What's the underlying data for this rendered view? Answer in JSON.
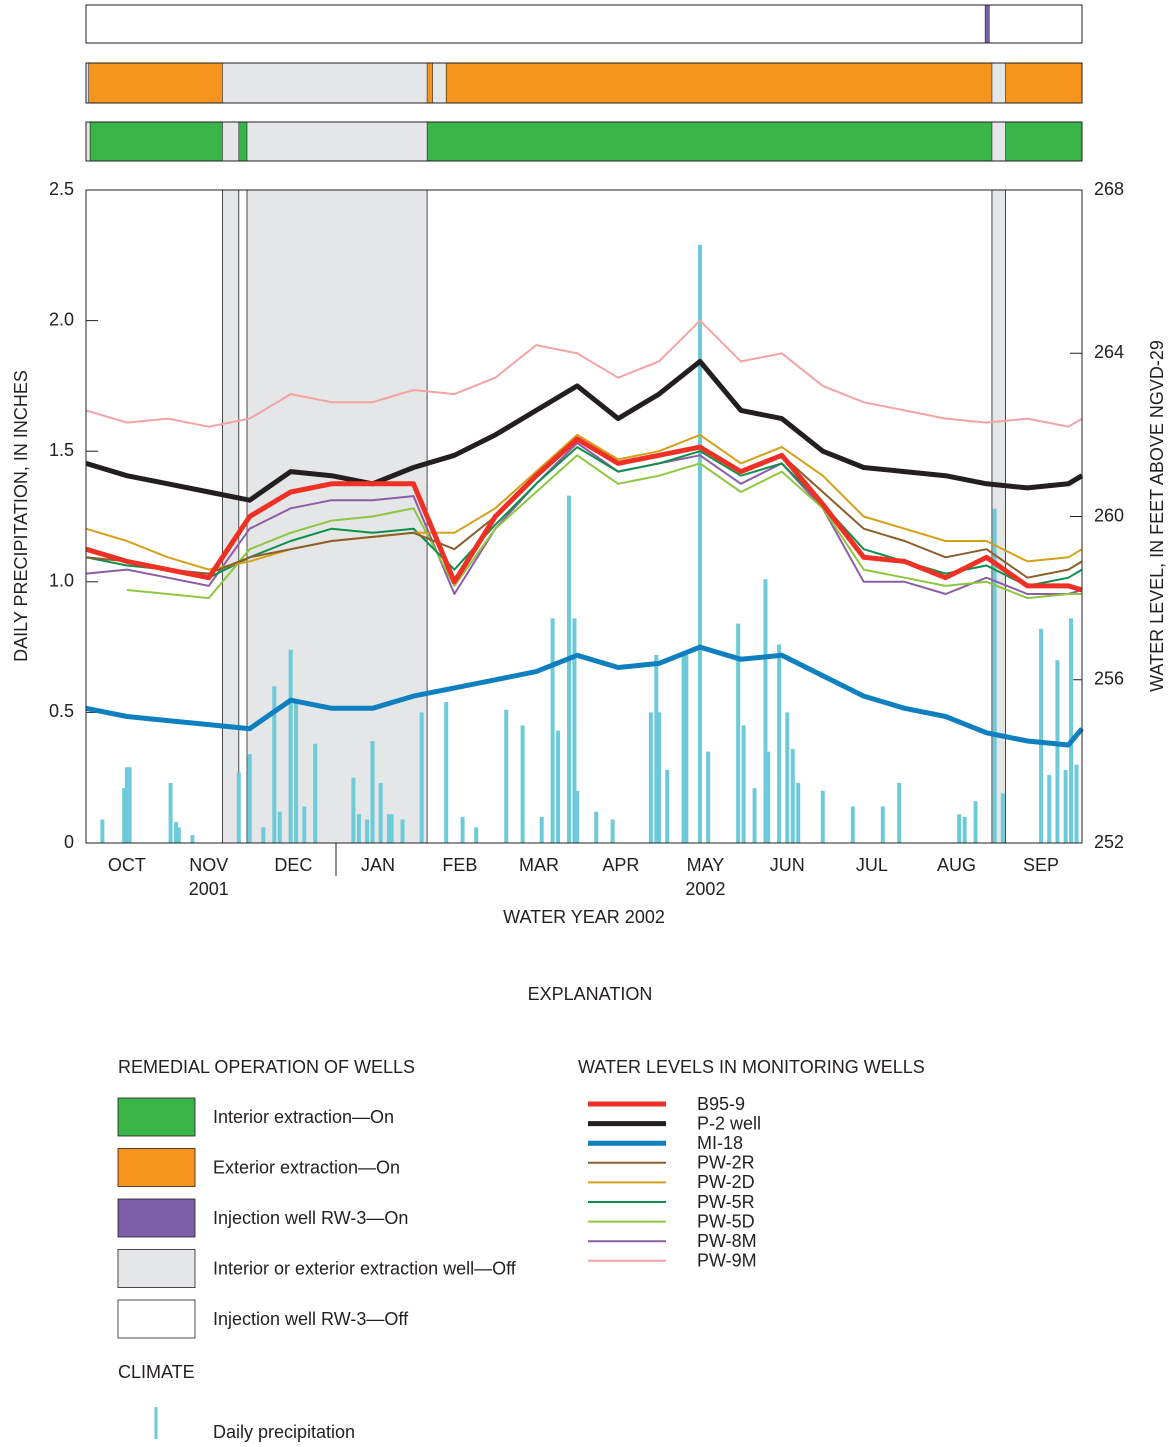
{
  "chart_data": {
    "type": "line",
    "x_label": "WATER YEAR 2002",
    "y_label": "DAILY PRECIPITATION, IN INCHES",
    "y2_label": "WATER LEVEL, IN FEET ABOVE NGVD-29",
    "xlim": [
      0,
      365
    ],
    "xticks": [
      {
        "value": 15,
        "label": "OCT"
      },
      {
        "value": 45,
        "label": "NOV"
      },
      {
        "value": 76,
        "label": "DEC"
      },
      {
        "value": 107,
        "label": "JAN"
      },
      {
        "value": 137,
        "label": "FEB"
      },
      {
        "value": 166,
        "label": "MAR"
      },
      {
        "value": 196,
        "label": "APR"
      },
      {
        "value": 227,
        "label": "MAY"
      },
      {
        "value": 257,
        "label": "JUN"
      },
      {
        "value": 288,
        "label": "JUL"
      },
      {
        "value": 319,
        "label": "AUG"
      },
      {
        "value": 350,
        "label": "SEP"
      }
    ],
    "x_year_labels": [
      {
        "value": 45,
        "label": "2001"
      },
      {
        "value": 227,
        "label": "2002"
      }
    ],
    "ylim": [
      0,
      2.5
    ],
    "yticks": [
      0,
      0.5,
      {
        "value": 1,
        "label": "1.0"
      },
      1.5,
      {
        "value": 2,
        "label": "2.0"
      },
      2.5
    ],
    "y2lim": [
      252,
      268
    ],
    "y2ticks": [
      252,
      256,
      260,
      264,
      268
    ],
    "x": [
      0,
      15,
      30,
      45,
      60,
      75,
      90,
      105,
      120,
      135,
      150,
      165,
      180,
      195,
      210,
      225,
      240,
      255,
      270,
      285,
      300,
      315,
      330,
      345,
      360,
      365
    ],
    "series": [
      {
        "name": "B95-9",
        "color": "#ee3124",
        "width": 5,
        "axis": "y2",
        "values": [
          259.2,
          258.9,
          258.7,
          258.5,
          260.0,
          260.6,
          260.8,
          260.8,
          260.8,
          258.4,
          260.0,
          261.0,
          261.9,
          261.3,
          261.5,
          261.7,
          261.1,
          261.5,
          260.3,
          259.0,
          258.9,
          258.5,
          259.0,
          258.3,
          258.3,
          258.2
        ]
      },
      {
        "name": "P-2 well",
        "color": "#231f20",
        "width": 5,
        "axis": "y2",
        "values": [
          261.3,
          261.0,
          260.8,
          260.6,
          260.4,
          261.1,
          261.0,
          260.8,
          261.2,
          261.5,
          262.0,
          262.6,
          263.2,
          262.4,
          263.0,
          263.8,
          262.6,
          262.4,
          261.6,
          261.2,
          261.1,
          261.0,
          260.8,
          260.7,
          260.8,
          261.0
        ]
      },
      {
        "name": "MI-18",
        "color": "#0f7fc0",
        "width": 5,
        "axis": "y2",
        "values": [
          255.3,
          255.1,
          255.0,
          254.9,
          254.8,
          255.5,
          255.3,
          255.3,
          255.6,
          255.8,
          256.0,
          256.2,
          256.6,
          256.3,
          256.4,
          256.8,
          256.5,
          256.6,
          256.1,
          255.6,
          255.3,
          255.1,
          254.7,
          254.5,
          254.4,
          254.8
        ]
      },
      {
        "name": "PW-2R",
        "color": "#8b5e2b",
        "width": 2,
        "axis": "y2",
        "values": [
          259.0,
          258.9,
          258.7,
          258.6,
          259.0,
          259.2,
          259.4,
          259.5,
          259.6,
          259.2,
          260.0,
          261.0,
          261.9,
          261.3,
          261.5,
          261.7,
          261.1,
          261.5,
          260.6,
          259.7,
          259.4,
          259.0,
          259.2,
          258.5,
          258.7,
          258.9
        ]
      },
      {
        "name": "PW-2D",
        "color": "#d4a017",
        "width": 2,
        "axis": "y2",
        "values": [
          259.7,
          259.4,
          259.0,
          258.7,
          258.9,
          259.2,
          259.4,
          259.5,
          259.6,
          259.6,
          260.2,
          261.1,
          262.0,
          261.4,
          261.6,
          262.0,
          261.3,
          261.7,
          261.0,
          260.0,
          259.7,
          259.4,
          259.4,
          258.9,
          259.0,
          259.2
        ]
      },
      {
        "name": "PW-5R",
        "color": "#0b8f4a",
        "width": 2,
        "axis": "y2",
        "values": [
          259.0,
          258.8,
          258.7,
          258.5,
          259.0,
          259.4,
          259.7,
          259.6,
          259.7,
          258.7,
          259.8,
          260.8,
          261.7,
          261.1,
          261.3,
          261.6,
          261.0,
          261.3,
          260.3,
          259.2,
          258.9,
          258.6,
          258.8,
          258.3,
          258.5,
          258.7
        ]
      },
      {
        "name": "PW-5D",
        "color": "#8dc63f",
        "width": 2,
        "axis": "y2",
        "values": [
          null,
          258.2,
          258.1,
          258.0,
          259.2,
          259.6,
          259.9,
          260.0,
          260.2,
          258.3,
          259.7,
          260.6,
          261.5,
          260.8,
          261.0,
          261.3,
          260.6,
          261.1,
          260.2,
          258.7,
          258.5,
          258.3,
          258.4,
          258.0,
          258.1,
          258.1
        ]
      },
      {
        "name": "PW-8M",
        "color": "#8e5ba7",
        "width": 2,
        "axis": "y2",
        "values": [
          258.6,
          258.7,
          258.5,
          258.3,
          259.7,
          260.2,
          260.4,
          260.4,
          260.5,
          258.1,
          259.7,
          260.8,
          261.8,
          261.1,
          261.3,
          261.5,
          260.8,
          261.3,
          260.2,
          258.4,
          258.4,
          258.1,
          258.5,
          258.1,
          258.1,
          258.2
        ]
      },
      {
        "name": "PW-9M",
        "color": "#f4a3a3",
        "width": 2,
        "axis": "y2",
        "values": [
          262.6,
          262.3,
          262.4,
          262.2,
          262.4,
          263.0,
          262.8,
          262.8,
          263.1,
          263.0,
          263.4,
          264.2,
          264.0,
          263.4,
          263.8,
          264.8,
          263.8,
          264.0,
          263.2,
          262.8,
          262.6,
          262.4,
          262.3,
          262.4,
          262.2,
          262.4
        ]
      }
    ],
    "precipitation": {
      "name": "Daily precipitation",
      "color": "#6ccad9",
      "x": [
        6,
        14,
        15,
        16,
        31,
        33,
        34,
        39,
        56,
        60,
        65,
        69,
        71,
        75,
        77,
        80,
        84,
        98,
        100,
        103,
        105,
        108,
        111,
        112,
        116,
        123,
        132,
        138,
        143,
        154,
        160,
        167,
        171,
        173,
        177,
        179,
        180,
        187,
        193,
        207,
        209,
        210,
        213,
        219,
        220,
        225,
        228,
        239,
        241,
        245,
        249,
        250,
        254,
        257,
        259,
        261,
        270,
        281,
        292,
        298,
        320,
        322,
        326,
        333,
        336,
        350,
        353,
        356,
        359,
        361,
        363
      ],
      "values": [
        0.09,
        0.21,
        0.29,
        0.29,
        0.23,
        0.08,
        0.06,
        0.03,
        0.27,
        0.34,
        0.06,
        0.6,
        0.12,
        0.74,
        0.54,
        0.14,
        0.38,
        0.25,
        0.11,
        0.09,
        0.39,
        0.23,
        0.11,
        0.11,
        0.09,
        0.5,
        0.54,
        0.1,
        0.06,
        0.51,
        0.45,
        0.1,
        0.86,
        0.43,
        1.33,
        0.86,
        0.2,
        0.12,
        0.09,
        0.5,
        0.72,
        0.5,
        0.28,
        0.73,
        0.72,
        2.29,
        0.35,
        0.84,
        0.45,
        0.21,
        1.01,
        0.35,
        0.76,
        0.5,
        0.36,
        0.23,
        0.2,
        0.14,
        0.14,
        0.23,
        0.11,
        0.1,
        0.16,
        1.28,
        0.19,
        0.82,
        0.26,
        0.7,
        0.28,
        0.86,
        0.3
      ]
    },
    "operation_legend": [
      {
        "label": "Interior extraction—On",
        "color": "#3ab54a"
      },
      {
        "label": "Exterior extraction—On",
        "color": "#f7941d"
      },
      {
        "label": "Injection well RW-3—On",
        "color": "#7b5ea7"
      },
      {
        "label": "Interior or exterior extraction well—Off",
        "color": "#e5e6e8"
      },
      {
        "label": "Injection well RW-3—Off",
        "color": "#ffffff"
      }
    ],
    "injection_on": [
      [
        329.5,
        331
      ]
    ],
    "exterior_on": [
      [
        1,
        50
      ],
      [
        125,
        127
      ],
      [
        132,
        332
      ],
      [
        337,
        365
      ]
    ],
    "interior_on": [
      [
        1.5,
        50
      ],
      [
        56,
        59
      ],
      [
        125,
        332
      ],
      [
        337,
        365
      ]
    ],
    "extraction_off": [
      [
        50,
        56
      ],
      [
        59,
        125
      ],
      [
        332,
        337
      ]
    ],
    "explanation_title": "EXPLANATION",
    "operation_heading": "REMEDIAL OPERATION OF WELLS",
    "levels_heading": "WATER LEVELS IN MONITORING WELLS",
    "climate_heading": "CLIMATE"
  }
}
